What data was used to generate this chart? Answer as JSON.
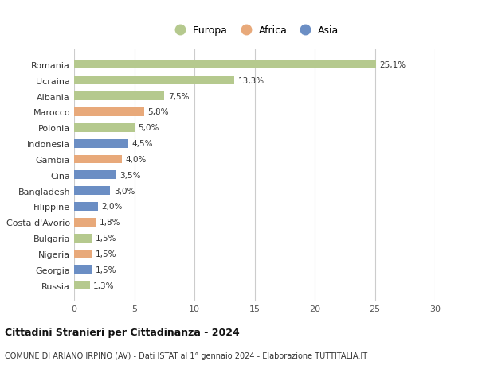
{
  "countries": [
    "Romania",
    "Ucraina",
    "Albania",
    "Marocco",
    "Polonia",
    "Indonesia",
    "Gambia",
    "Cina",
    "Bangladesh",
    "Filippine",
    "Costa d'Avorio",
    "Bulgaria",
    "Nigeria",
    "Georgia",
    "Russia"
  ],
  "values": [
    25.1,
    13.3,
    7.5,
    5.8,
    5.0,
    4.5,
    4.0,
    3.5,
    3.0,
    2.0,
    1.8,
    1.5,
    1.5,
    1.5,
    1.3
  ],
  "labels": [
    "25,1%",
    "13,3%",
    "7,5%",
    "5,8%",
    "5,0%",
    "4,5%",
    "4,0%",
    "3,5%",
    "3,0%",
    "2,0%",
    "1,8%",
    "1,5%",
    "1,5%",
    "1,5%",
    "1,3%"
  ],
  "continents": [
    "Europa",
    "Europa",
    "Europa",
    "Africa",
    "Europa",
    "Asia",
    "Africa",
    "Asia",
    "Asia",
    "Asia",
    "Africa",
    "Europa",
    "Africa",
    "Asia",
    "Europa"
  ],
  "colors": {
    "Europa": "#b5c98e",
    "Africa": "#e8a97a",
    "Asia": "#6b8ec4"
  },
  "xlim": [
    0,
    30
  ],
  "xticks": [
    0,
    5,
    10,
    15,
    20,
    25,
    30
  ],
  "title": "Cittadini Stranieri per Cittadinanza - 2024",
  "subtitle": "COMUNE DI ARIANO IRPINO (AV) - Dati ISTAT al 1° gennaio 2024 - Elaborazione TUTTITALIA.IT",
  "background_color": "#ffffff",
  "grid_color": "#cccccc",
  "bar_height": 0.55
}
